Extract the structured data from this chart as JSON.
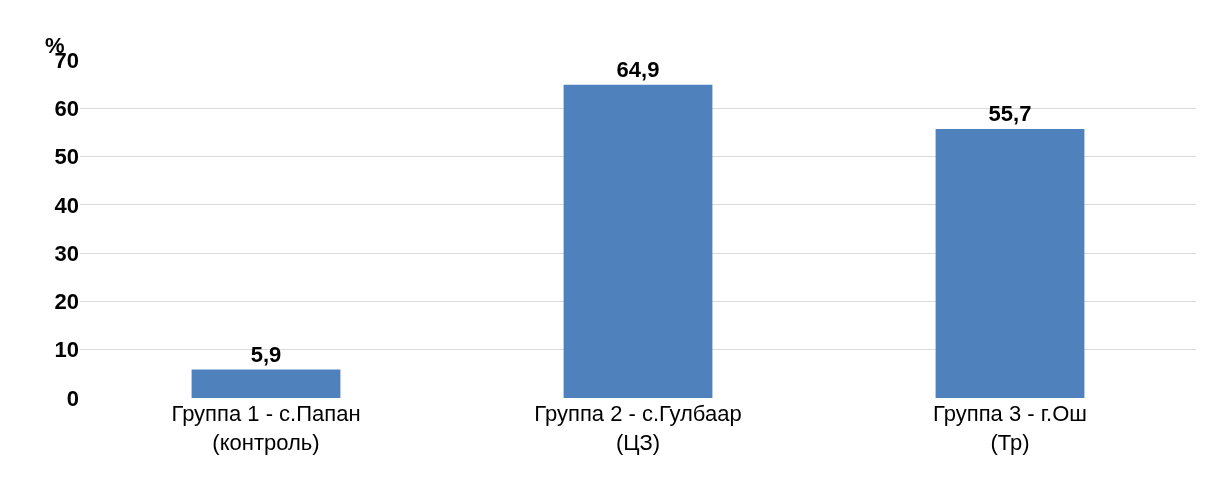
{
  "chart_data": {
    "type": "bar",
    "ylabel": "%",
    "categories": [
      "Группа 1 - с.Папан\n(контроль)",
      "Группа 2 - с.Гулбаар\n(ЦЗ)",
      "Группа 3 - г.Ош\n(Тр)"
    ],
    "values": [
      5.9,
      64.9,
      55.7
    ],
    "value_labels": [
      "5,9",
      "64,9",
      "55,7"
    ],
    "color": "#4f81bd",
    "ylim": [
      0,
      70
    ],
    "yticks": [
      0,
      10,
      20,
      30,
      40,
      50,
      60,
      70
    ],
    "grid": "y",
    "legend": false
  }
}
